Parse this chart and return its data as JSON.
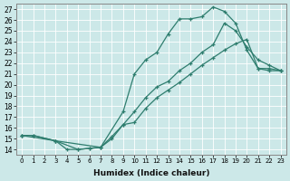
{
  "xlabel": "Humidex (Indice chaleur)",
  "bg_color": "#cce8e8",
  "line_color": "#2e7d6e",
  "xlim": [
    -0.5,
    23.5
  ],
  "ylim": [
    13.5,
    27.5
  ],
  "xticks": [
    0,
    1,
    2,
    3,
    4,
    5,
    6,
    7,
    8,
    9,
    10,
    11,
    12,
    13,
    14,
    15,
    16,
    17,
    18,
    19,
    20,
    21,
    22,
    23
  ],
  "yticks": [
    14,
    15,
    16,
    17,
    18,
    19,
    20,
    21,
    22,
    23,
    24,
    25,
    26,
    27
  ],
  "series": [
    {
      "x": [
        0,
        1,
        3,
        4,
        5,
        6,
        7,
        9,
        10,
        11,
        12,
        13,
        14,
        15,
        16,
        17,
        18,
        19,
        20,
        21,
        22,
        23
      ],
      "y": [
        15.3,
        15.3,
        14.8,
        14.0,
        14.0,
        14.1,
        14.2,
        17.5,
        21.0,
        22.3,
        23.0,
        24.7,
        26.1,
        26.1,
        26.3,
        27.2,
        26.8,
        25.7,
        23.2,
        21.5,
        21.3,
        21.3
      ]
    },
    {
      "x": [
        0,
        1,
        3,
        5,
        6,
        7,
        8,
        9,
        10,
        11,
        12,
        13,
        14,
        15,
        16,
        17,
        18,
        19,
        20,
        21,
        22,
        23
      ],
      "y": [
        15.3,
        15.3,
        14.8,
        14.0,
        14.1,
        14.2,
        15.0,
        16.3,
        17.5,
        18.8,
        19.8,
        20.3,
        21.3,
        22.0,
        23.0,
        23.7,
        25.7,
        25.0,
        23.5,
        22.3,
        21.8,
        21.3
      ]
    },
    {
      "x": [
        0,
        3,
        7,
        8,
        9,
        10,
        11,
        12,
        13,
        14,
        15,
        16,
        17,
        18,
        19,
        20,
        21,
        22,
        23
      ],
      "y": [
        15.3,
        14.8,
        14.2,
        15.2,
        16.3,
        16.5,
        17.8,
        18.8,
        19.5,
        20.2,
        21.0,
        21.8,
        22.5,
        23.2,
        23.8,
        24.2,
        21.5,
        21.5,
        21.3
      ]
    }
  ]
}
